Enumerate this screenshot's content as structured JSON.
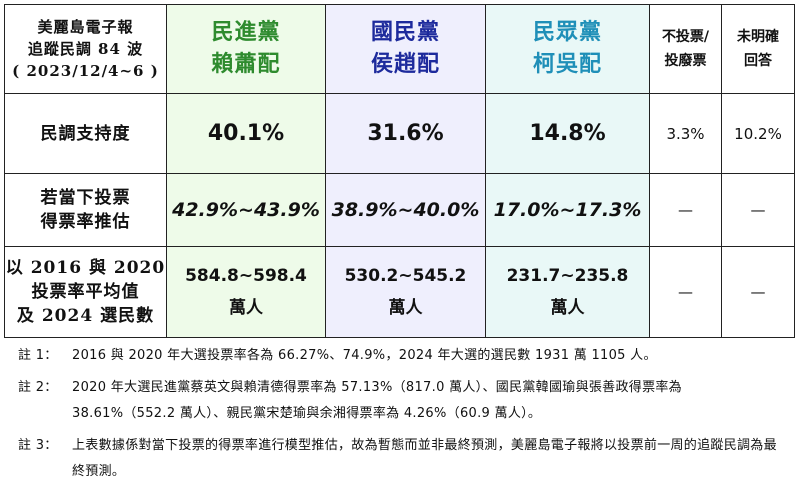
{
  "header": {
    "corner_line1": "美麗島電子報",
    "corner_line2": "追蹤民調 84 波",
    "corner_line3": "( 2023/12/4~6 )",
    "candidates": [
      {
        "party": "民進黨",
        "ticket": "賴蕭配",
        "color": "#2e8b2e",
        "bg": "#eefbe9"
      },
      {
        "party": "國民黨",
        "ticket": "侯趙配",
        "color": "#1d2a9c",
        "bg": "#efeffd"
      },
      {
        "party": "民眾黨",
        "ticket": "柯吳配",
        "color": "#1f8fb8",
        "bg": "#e9f8f7"
      }
    ],
    "other1_line1": "不投票/",
    "other1_line2": "投廢票",
    "other2_line1": "未明確",
    "other2_line2": "回答"
  },
  "rows": {
    "support": {
      "label": "民調支持度",
      "values": [
        "40.1%",
        "31.6%",
        "14.8%",
        "3.3%",
        "10.2%"
      ]
    },
    "estimate": {
      "label_line1": "若當下投票",
      "label_line2": "得票率推估",
      "values": [
        "42.9%~43.9%",
        "38.9%~40.0%",
        "17.0%~17.3%",
        "—",
        "—"
      ]
    },
    "voters": {
      "label_line1": "以 2016 與 2020",
      "label_line2": "投票率平均值",
      "label_line3": "及 2024 選民數",
      "values": [
        "584.8~598.4",
        "530.2~545.2",
        "231.7~235.8"
      ],
      "unit": "萬人",
      "others": [
        "—",
        "—"
      ]
    }
  },
  "notes": [
    {
      "label": "註 1：",
      "text": "2016 與 2020 年大選投票率各為 66.27%、74.9%，2024 年大選的選民數 1931 萬 1105 人。"
    },
    {
      "label": "註 2：",
      "text": "2020 年大選民進黨蔡英文與賴清德得票率為 57.13%（817.0 萬人）、國民黨韓國瑜與張善政得票率為 38.61%（552.2 萬人）、親民黨宋楚瑜與余湘得票率為 4.26%（60.9 萬人）。"
    },
    {
      "label": "註 3：",
      "text": "上表數據係對當下投票的得票率進行模型推估，故為暫態而並非最終預測，美麗島電子報將以投票前一周的追蹤民調為最終預測。"
    }
  ]
}
